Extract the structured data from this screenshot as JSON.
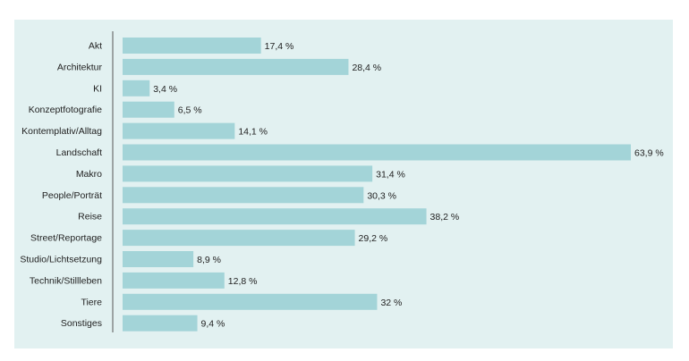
{
  "colors": {
    "background": "#e2f1f1",
    "bar": "#a3d4d8",
    "axis": "#555555",
    "text": "#222222"
  },
  "chart_data": {
    "type": "bar",
    "orientation": "horizontal",
    "categories": [
      "Akt",
      "Architektur",
      "KI",
      "Konzeptfotografie",
      "Kontemplativ/Alltag",
      "Landschaft",
      "Makro",
      "People/Porträt",
      "Reise",
      "Street/Reportage",
      "Studio/Lichtsetzung",
      "Technik/Stillleben",
      "Tiere",
      "Sonstiges"
    ],
    "values": [
      17.4,
      28.4,
      3.4,
      6.5,
      14.1,
      63.9,
      31.4,
      30.3,
      38.2,
      29.2,
      8.9,
      12.8,
      32,
      9.4
    ],
    "data_labels": [
      "17,4 %",
      "28,4 %",
      "3,4 %",
      "6,5 %",
      "14,1 %",
      "63,9 %",
      "31,4 %",
      "30,3 %",
      "38,2 %",
      "29,2 %",
      "8,9 %",
      "12,8 %",
      "32 %",
      "9,4 %"
    ],
    "unit": "%",
    "xlim": [
      0,
      63.9
    ],
    "grid": false,
    "legend": "none"
  }
}
